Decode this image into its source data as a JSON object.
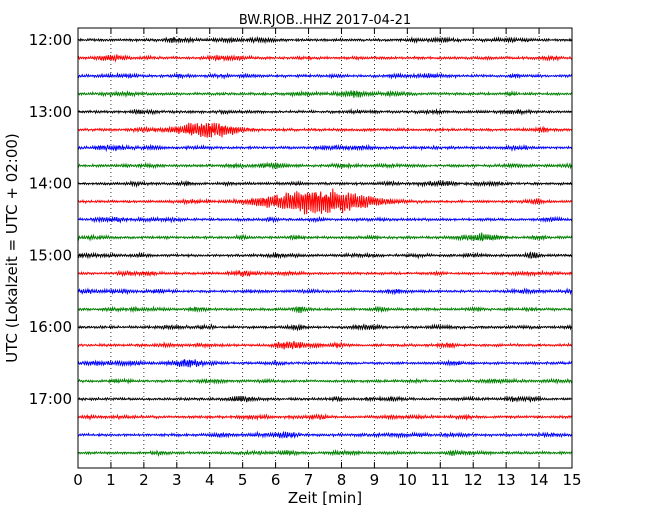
{
  "chart_data": {
    "type": "line",
    "title": "BW.RJOB..HHZ 2017-04-21",
    "xlabel": "Zeit  [min]",
    "ylabel": "UTC (Lokalzeit = UTC + 02:00)",
    "xlim": [
      0,
      15
    ],
    "x_ticks": [
      0,
      1,
      2,
      3,
      4,
      5,
      6,
      7,
      8,
      9,
      10,
      11,
      12,
      13,
      14,
      15
    ],
    "x_tick_labels": [
      "0",
      "1",
      "2",
      "3",
      "4",
      "5",
      "6",
      "7",
      "8",
      "9",
      "10",
      "11",
      "12",
      "13",
      "14",
      "15"
    ],
    "y_tick_labels": [
      "12:00",
      "13:00",
      "14:00",
      "15:00",
      "16:00",
      "17:00"
    ],
    "y_tick_rows": [
      0,
      4,
      8,
      12,
      16,
      20
    ],
    "grid": "vertical-dotted",
    "color_cycle": [
      "#000000",
      "#ff0000",
      "#0000ff",
      "#008000"
    ],
    "series": [
      {
        "start": "12:00",
        "color": "#000000"
      },
      {
        "start": "12:15",
        "color": "#ff0000"
      },
      {
        "start": "12:30",
        "color": "#0000ff"
      },
      {
        "start": "12:45",
        "color": "#008000"
      },
      {
        "start": "13:00",
        "color": "#000000"
      },
      {
        "start": "13:15",
        "color": "#ff0000",
        "events": [
          {
            "t": 3.9,
            "amp": 1.9,
            "dur": 1.6
          }
        ]
      },
      {
        "start": "13:30",
        "color": "#0000ff"
      },
      {
        "start": "13:45",
        "color": "#008000"
      },
      {
        "start": "14:00",
        "color": "#000000"
      },
      {
        "start": "14:15",
        "color": "#ff0000",
        "events": [
          {
            "t": 7.3,
            "amp": 3.2,
            "dur": 3.2
          }
        ]
      },
      {
        "start": "14:30",
        "color": "#0000ff"
      },
      {
        "start": "14:45",
        "color": "#008000"
      },
      {
        "start": "15:00",
        "color": "#000000",
        "events": [
          {
            "t": 13.8,
            "amp": 0.9,
            "dur": 0.4
          }
        ]
      },
      {
        "start": "15:15",
        "color": "#ff0000"
      },
      {
        "start": "15:30",
        "color": "#0000ff"
      },
      {
        "start": "15:45",
        "color": "#008000"
      },
      {
        "start": "16:00",
        "color": "#000000"
      },
      {
        "start": "16:15",
        "color": "#ff0000"
      },
      {
        "start": "16:30",
        "color": "#0000ff"
      },
      {
        "start": "16:45",
        "color": "#008000"
      },
      {
        "start": "17:00",
        "color": "#000000"
      },
      {
        "start": "17:15",
        "color": "#ff0000"
      },
      {
        "start": "17:30",
        "color": "#0000ff"
      },
      {
        "start": "17:45",
        "color": "#008000"
      }
    ]
  }
}
